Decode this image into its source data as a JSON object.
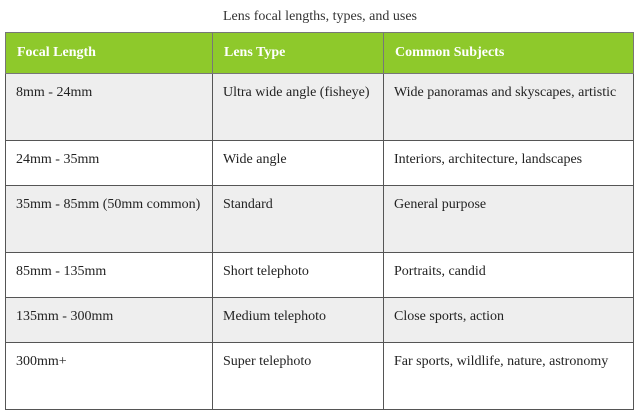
{
  "caption": "Lens focal lengths, types, and uses",
  "table": {
    "headers": [
      "Focal Length",
      "Lens Type",
      "Common Subjects"
    ],
    "rows": [
      [
        "8mm - 24mm",
        "Ultra wide angle (fisheye)",
        "Wide panoramas and skyscapes, artistic"
      ],
      [
        "24mm - 35mm",
        "Wide angle",
        "Interiors, architecture, landscapes"
      ],
      [
        "35mm - 85mm (50mm common)",
        "Standard",
        "General purpose"
      ],
      [
        "85mm - 135mm",
        "Short telephoto",
        "Portraits, candid"
      ],
      [
        "135mm - 300mm",
        "Medium telephoto",
        "Close sports, action"
      ],
      [
        "300mm+",
        "Super telephoto",
        "Far sports, wildlife, nature, astronomy"
      ]
    ]
  },
  "colors": {
    "header_bg": "#8ec92b",
    "header_text": "#ffffff",
    "row_shade": "#eeeeee",
    "border": "#555555"
  }
}
